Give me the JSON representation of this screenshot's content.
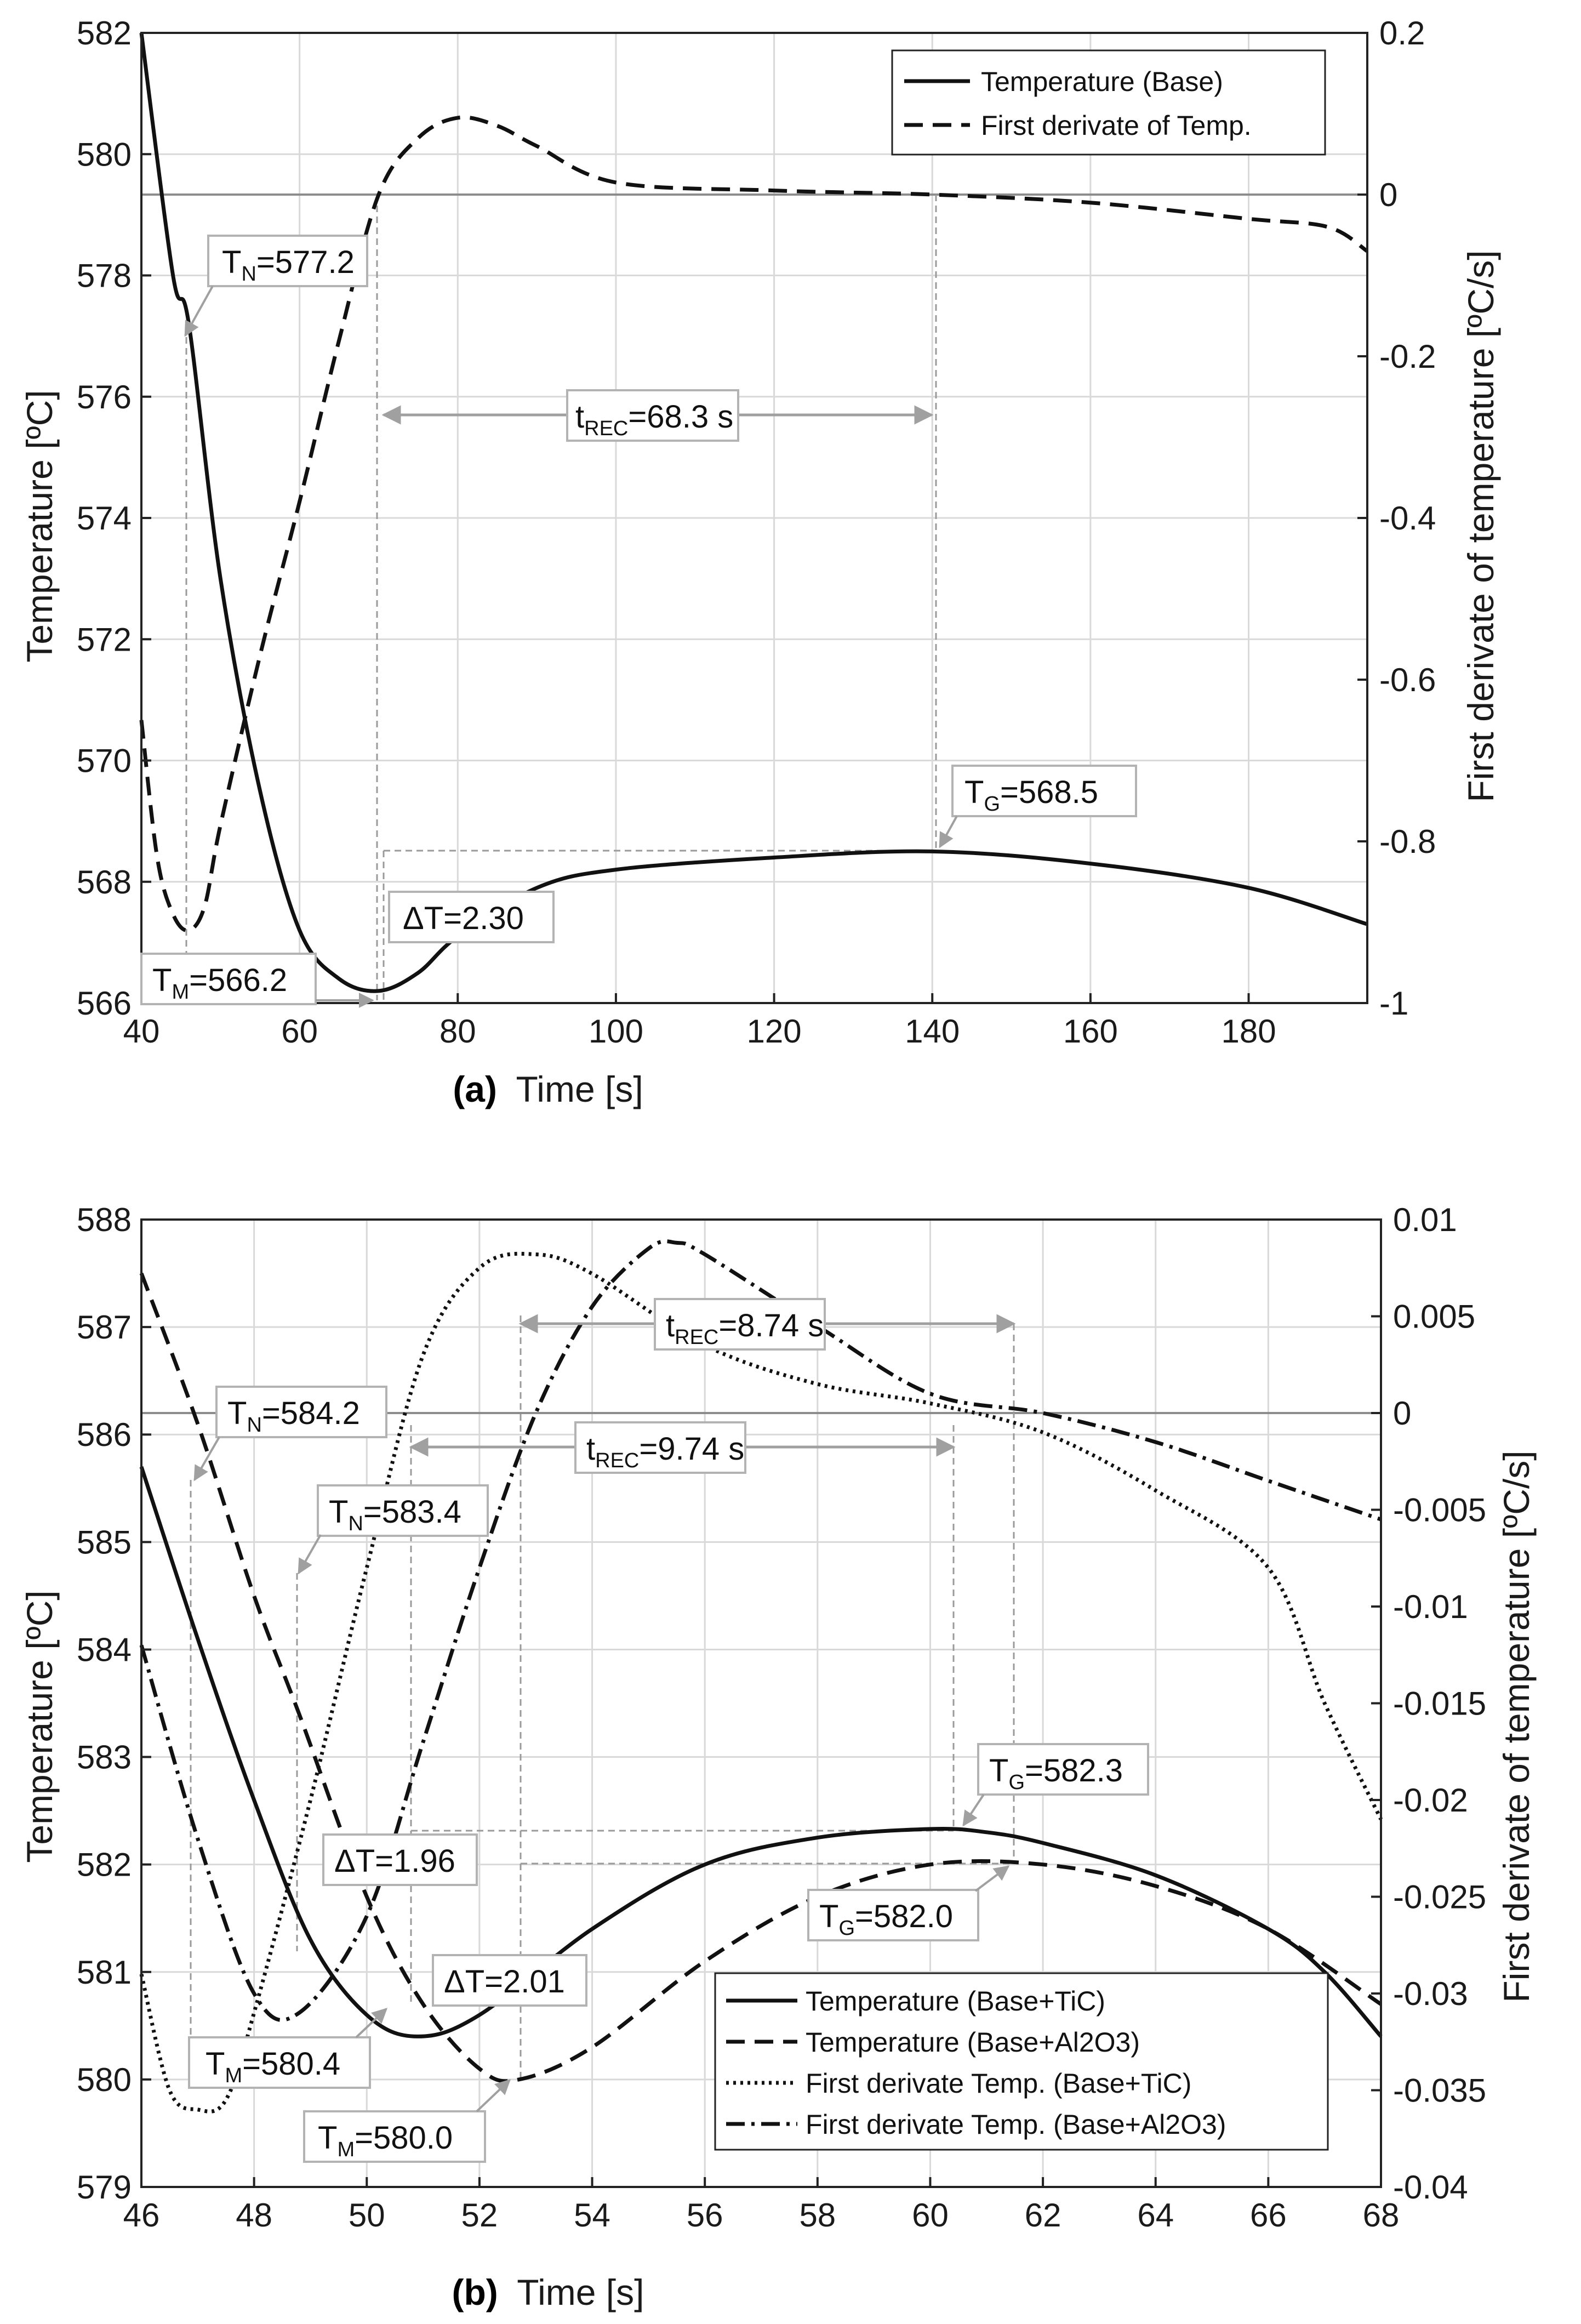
{
  "chart_data": [
    {
      "type": "line",
      "panel": "(a)",
      "xlabel": "Time [s]",
      "ylabel": "Temperature [ºC]",
      "y2label": "First derivate of temperature [ºC/s]",
      "xlim": [
        40,
        195
      ],
      "ylim": [
        566,
        582
      ],
      "y2lim": [
        -1,
        0.2
      ],
      "xticks": [
        "40",
        "60",
        "80",
        "100",
        "120",
        "140",
        "160",
        "180"
      ],
      "yticks": [
        "566",
        "568",
        "570",
        "572",
        "574",
        "576",
        "578",
        "580",
        "582"
      ],
      "y2ticks": [
        "-1",
        "-0.8",
        "-0.6",
        "-0.4",
        "-0.2",
        "0",
        "0.2"
      ],
      "grid": true,
      "legend_position": "top-right",
      "series": [
        {
          "name": "Temperature (Base)",
          "axis": "left",
          "style": "solid",
          "x": [
            40,
            44,
            46,
            50,
            55,
            60,
            65,
            70,
            75,
            80,
            90,
            100,
            120,
            140,
            160,
            180,
            195
          ],
          "y": [
            582,
            578,
            577.2,
            573,
            569.5,
            567.2,
            566.4,
            566.2,
            566.5,
            567.1,
            567.9,
            568.2,
            568.4,
            568.5,
            568.3,
            567.9,
            567.3
          ]
        },
        {
          "name": "First derivate of Temp.",
          "axis": "right",
          "style": "dashed",
          "x": [
            40,
            42,
            44,
            46,
            48,
            50,
            55,
            60,
            65,
            70,
            75,
            80,
            85,
            90,
            100,
            120,
            140,
            160,
            180,
            190,
            195
          ],
          "y": [
            -0.65,
            -0.82,
            -0.89,
            -0.91,
            -0.88,
            -0.78,
            -0.57,
            -0.38,
            -0.18,
            0.0,
            0.07,
            0.095,
            0.085,
            0.06,
            0.015,
            0.005,
            0.0,
            -0.01,
            -0.03,
            -0.04,
            -0.07
          ]
        }
      ],
      "annotations": [
        {
          "label": "T",
          "sub": "N",
          "value": "=577.2"
        },
        {
          "label": "T",
          "sub": "REC",
          "value": "=68.3 s",
          "prefix": "t"
        },
        {
          "label": "T",
          "sub": "G",
          "value": "=568.5"
        },
        {
          "label": "ΔT=2.30",
          "sub": "",
          "value": ""
        },
        {
          "label": "T",
          "sub": "M",
          "value": "=566.2"
        }
      ]
    },
    {
      "type": "line",
      "panel": "(b)",
      "xlabel": "Time [s]",
      "ylabel": "Temperature [ºC]",
      "y2label": "First derivate of temperature [ºC/s]",
      "xlim": [
        46,
        68
      ],
      "ylim": [
        579,
        588
      ],
      "y2lim": [
        -0.04,
        0.01
      ],
      "xticks": [
        "46",
        "48",
        "50",
        "52",
        "54",
        "56",
        "58",
        "60",
        "62",
        "64",
        "66",
        "68"
      ],
      "yticks": [
        "579",
        "580",
        "581",
        "582",
        "583",
        "584",
        "585",
        "586",
        "587",
        "588"
      ],
      "y2ticks": [
        "-0.04",
        "-0.035",
        "-0.03",
        "-0.025",
        "-0.02",
        "-0.015",
        "-0.01",
        "-0.005",
        "0",
        "0.005",
        "0.01"
      ],
      "grid": true,
      "legend_position": "bottom-right",
      "series": [
        {
          "name": "Temperature (Base+TiC)",
          "axis": "left",
          "style": "solid",
          "x": [
            46,
            47,
            48,
            49,
            50,
            50.9,
            52,
            54,
            56,
            58,
            60,
            61,
            62,
            64,
            66,
            67,
            68
          ],
          "y": [
            585.7,
            584.1,
            582.6,
            581.3,
            580.6,
            580.4,
            580.6,
            581.4,
            582.0,
            582.25,
            582.33,
            582.3,
            582.2,
            581.9,
            581.4,
            581.0,
            580.4
          ]
        },
        {
          "name": "Temperature (Base+Al2O3)",
          "axis": "left",
          "style": "dashed",
          "x": [
            46,
            47,
            48,
            48.8,
            50,
            51,
            52,
            52.7,
            54,
            56,
            58,
            60,
            62,
            64,
            66,
            68
          ],
          "y": [
            587.5,
            586.1,
            584.5,
            583.4,
            581.7,
            580.7,
            580.1,
            580.0,
            580.3,
            581.1,
            581.7,
            582.0,
            582.0,
            581.8,
            581.4,
            580.7
          ]
        },
        {
          "name": "First derivate Temp. (Base+TiC)",
          "axis": "right",
          "style": "dotted",
          "x": [
            46,
            46.5,
            47,
            47.5,
            48,
            49,
            50,
            51,
            52,
            53,
            54,
            56,
            58,
            60,
            62,
            64,
            66,
            67,
            68
          ],
          "y": [
            -0.029,
            -0.035,
            -0.036,
            -0.0355,
            -0.031,
            -0.02,
            -0.008,
            0.003,
            0.0075,
            0.0082,
            0.0072,
            0.0035,
            0.0015,
            0.0005,
            -0.001,
            -0.004,
            -0.008,
            -0.015,
            -0.021
          ]
        },
        {
          "name": "First derivate Temp. (Base+Al2O3)",
          "axis": "right",
          "style": "dashdot",
          "x": [
            46,
            47,
            48,
            48.8,
            50,
            51,
            52,
            53,
            54,
            55,
            55.5,
            56,
            58,
            60,
            62,
            64,
            66,
            68
          ],
          "y": [
            -0.012,
            -0.022,
            -0.03,
            -0.031,
            -0.026,
            -0.017,
            -0.008,
            0.0,
            0.0055,
            0.0085,
            0.0088,
            0.0082,
            0.0045,
            0.001,
            0.0,
            -0.0015,
            -0.0035,
            -0.0055
          ]
        }
      ],
      "annotations": [
        {
          "label": "T",
          "sub": "N",
          "value": "=584.2"
        },
        {
          "label": "T",
          "sub": "N",
          "value": "=583.4"
        },
        {
          "label": "T",
          "sub": "REC",
          "value": "=8.74 s",
          "prefix": "t"
        },
        {
          "label": "T",
          "sub": "REC",
          "value": "=9.74 s",
          "prefix": "t"
        },
        {
          "label": "T",
          "sub": "G",
          "value": "=582.3"
        },
        {
          "label": "T",
          "sub": "G",
          "value": "=582.0"
        },
        {
          "label": "ΔT=1.96",
          "sub": "",
          "value": ""
        },
        {
          "label": "ΔT=2.01",
          "sub": "",
          "value": ""
        },
        {
          "label": "T",
          "sub": "M",
          "value": "=580.4"
        },
        {
          "label": "T",
          "sub": "M",
          "value": "=580.0"
        }
      ]
    }
  ],
  "colors": {
    "curve": "#111111",
    "grid": "#d9d9d9",
    "zero_line": "#8c8c8c",
    "guide": "#9a9a9a",
    "box_border": "#b3b3b3"
  }
}
